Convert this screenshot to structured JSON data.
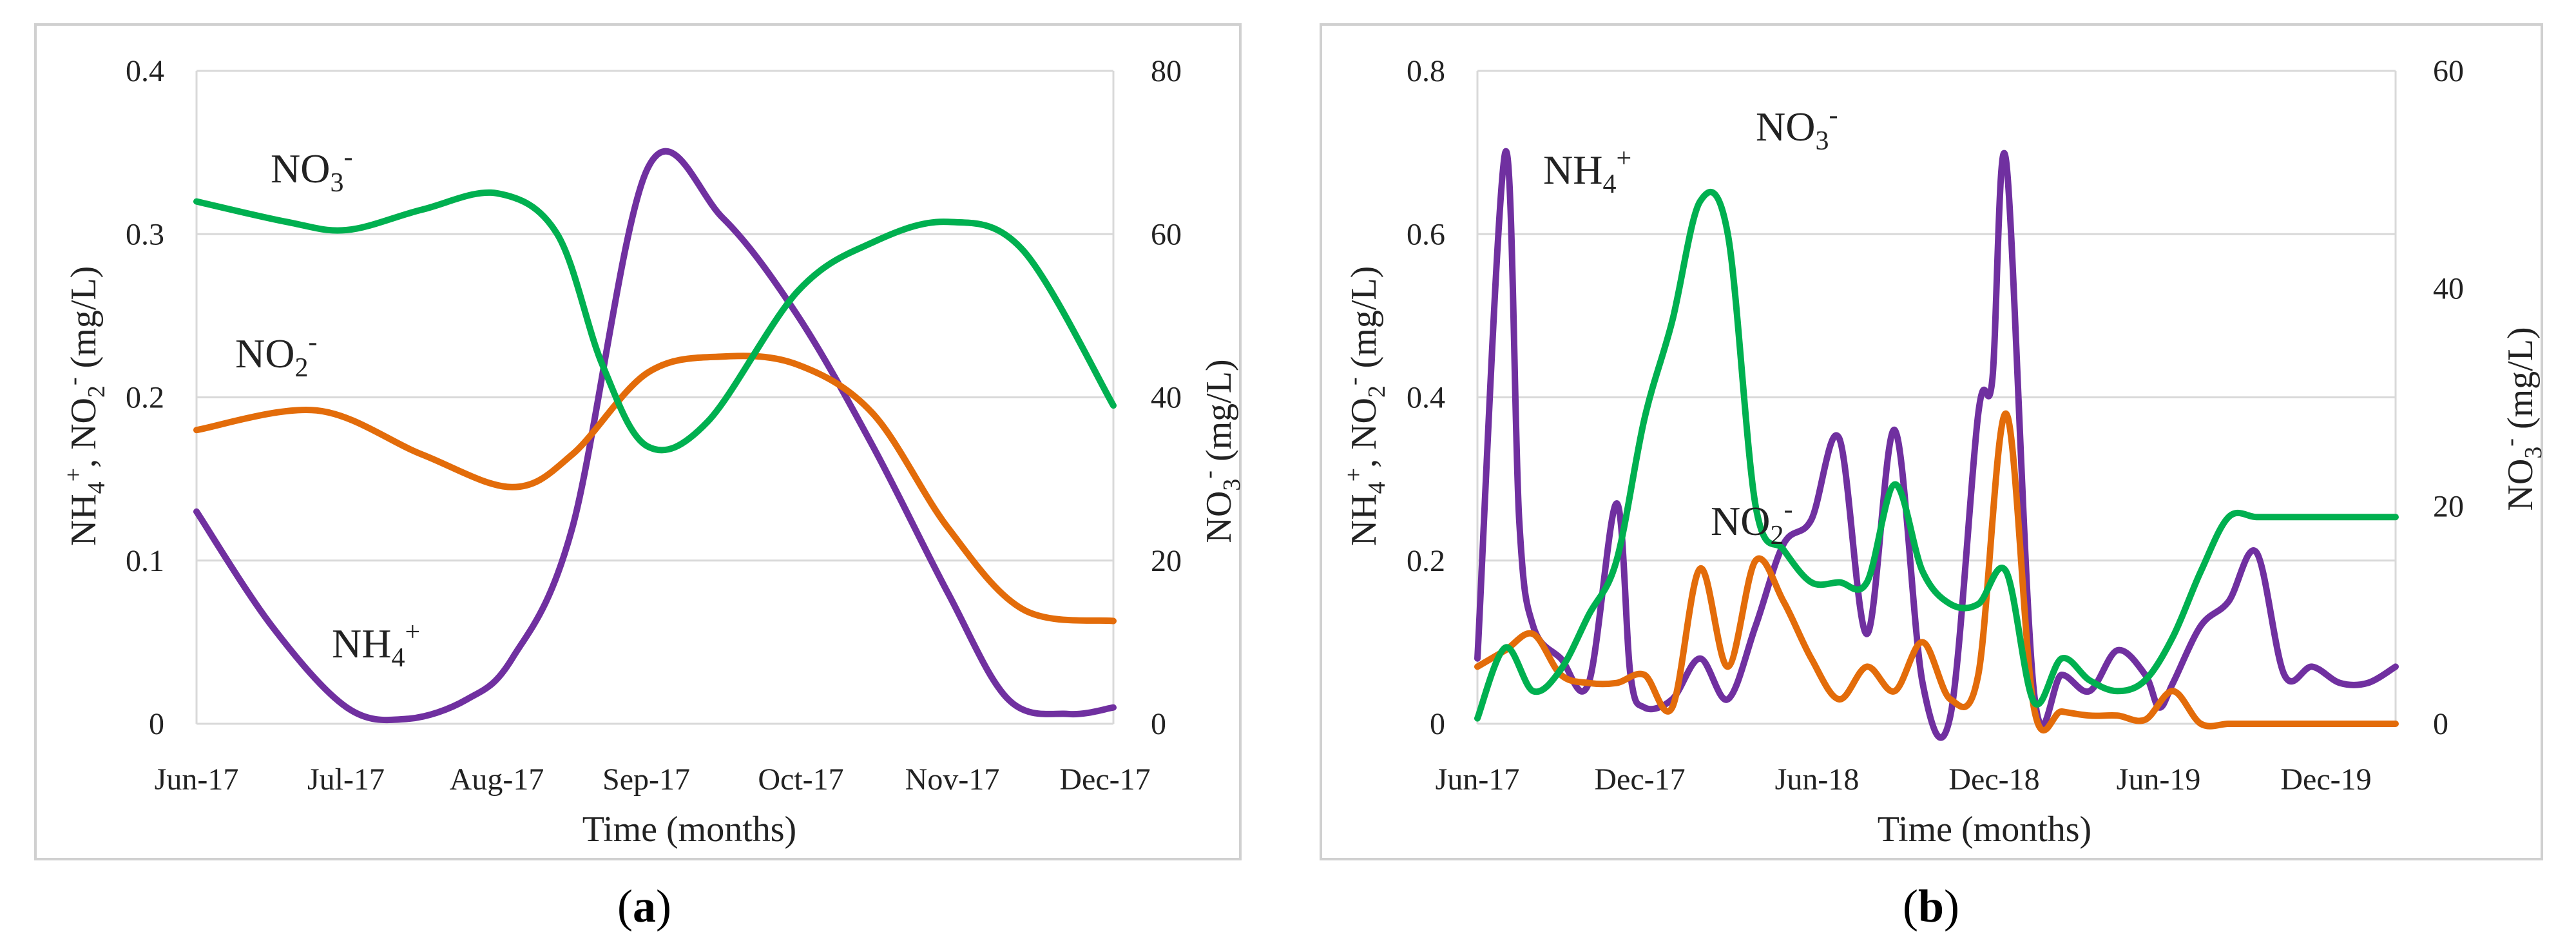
{
  "colors": {
    "nh4": "#7030a0",
    "no2": "#e36c0a",
    "no3": "#00b050"
  },
  "panels": [
    {
      "paren_open": "(",
      "letter": "a",
      "paren_close": ")"
    },
    {
      "paren_open": "(",
      "letter": "b",
      "paren_close": ")"
    }
  ],
  "chart_data": [
    {
      "type": "line",
      "xlabel": "Time (months)",
      "ylabel_left": {
        "n1": "NH",
        "n1_sub": "4",
        "n1_sup": "+",
        "sep": ", ",
        "n2": "NO",
        "n2_sub": "2",
        "n2_sup": "-",
        "unit": " (mg/L)"
      },
      "ylabel_right": {
        "n": "NO",
        "n_sub": "3",
        "n_sup": "-",
        "unit": " (mg/L)"
      },
      "x_ticks": [
        "Jun-17",
        "Jul-17",
        "Aug-17",
        "Sep-17",
        "Oct-17",
        "Nov-17",
        "Dec-17"
      ],
      "xlim": [
        0,
        6.1
      ],
      "ylim_left": [
        0,
        0.4
      ],
      "yticks_left": [
        "0",
        "0.1",
        "0.2",
        "0.3",
        "0.4"
      ],
      "ylim_right": [
        0,
        80
      ],
      "yticks_right": [
        "0",
        "20",
        "40",
        "60",
        "80"
      ],
      "grid": true,
      "series": [
        {
          "name": "NH4+",
          "axis": "left",
          "color_key": "nh4",
          "x": [
            0,
            0.5,
            1,
            1.4,
            1.8,
            2.1,
            2.5,
            3,
            3.5,
            4,
            4.5,
            5,
            5.4,
            5.8,
            6.1
          ],
          "y": [
            0.13,
            0.06,
            0.01,
            0.003,
            0.015,
            0.04,
            0.12,
            0.34,
            0.31,
            0.25,
            0.17,
            0.08,
            0.015,
            0.006,
            0.01
          ]
        },
        {
          "name": "NO2-",
          "axis": "left",
          "color_key": "no2",
          "x": [
            0,
            0.8,
            1.5,
            2.1,
            2.5,
            3,
            3.5,
            4,
            4.5,
            5,
            5.5,
            6.1
          ],
          "y": [
            0.18,
            0.192,
            0.165,
            0.145,
            0.165,
            0.215,
            0.225,
            0.22,
            0.19,
            0.12,
            0.07,
            0.063
          ]
        },
        {
          "name": "NO3-",
          "axis": "right",
          "color_key": "no3",
          "x": [
            0,
            0.6,
            1,
            1.5,
            2,
            2.4,
            2.7,
            3,
            3.4,
            4,
            4.5,
            5,
            5.5,
            6.1
          ],
          "y": [
            64,
            61.5,
            60.5,
            63,
            65,
            60,
            44,
            34,
            37,
            53,
            59,
            61.5,
            58,
            39
          ]
        }
      ],
      "annotations": [
        {
          "base": "NO",
          "sub": "3",
          "sup": "-",
          "series": "NO3-"
        },
        {
          "base": "NO",
          "sub": "2",
          "sup": "-",
          "series": "NO2-"
        },
        {
          "base": "NH",
          "sub": "4",
          "sup": "+",
          "series": "NH4+"
        }
      ]
    },
    {
      "type": "line",
      "xlabel": "Time (months)",
      "ylabel_left": {
        "n1": "NH",
        "n1_sub": "4",
        "n1_sup": "+",
        "sep": ", ",
        "n2": "NO",
        "n2_sub": "2",
        "n2_sup": "-",
        "unit": " (mg/L)"
      },
      "ylabel_right": {
        "n": "NO",
        "n_sub": "3",
        "n_sup": "-",
        "unit": " (mg/L)"
      },
      "x_ticks": [
        "Jun-17",
        "Dec-17",
        "Jun-18",
        "Dec-18",
        "Jun-19",
        "Dec-19"
      ],
      "xlim": [
        0,
        33
      ],
      "ylim_left": [
        0,
        0.8
      ],
      "yticks_left": [
        "0",
        "0.2",
        "0.4",
        "0.6",
        "0.8"
      ],
      "ylim_right": [
        0,
        60
      ],
      "yticks_right": [
        "0",
        "20",
        "40",
        "60"
      ],
      "grid": true,
      "series": [
        {
          "name": "NH4+",
          "axis": "left",
          "color_key": "nh4",
          "x": [
            0,
            1,
            1.5,
            2,
            3,
            4,
            5,
            5.5,
            6,
            7,
            8,
            9,
            10,
            11,
            12,
            13,
            14,
            15,
            16,
            17,
            18,
            18.5,
            19,
            20,
            21,
            22,
            23,
            24,
            24.5,
            25,
            26,
            27,
            28,
            29,
            30,
            31,
            32,
            33
          ],
          "y": [
            0.08,
            0.7,
            0.25,
            0.12,
            0.08,
            0.05,
            0.27,
            0.06,
            0.02,
            0.03,
            0.08,
            0.03,
            0.12,
            0.22,
            0.25,
            0.35,
            0.11,
            0.36,
            0.05,
            0.01,
            0.38,
            0.42,
            0.69,
            0.04,
            0.06,
            0.04,
            0.09,
            0.06,
            0.02,
            0.05,
            0.12,
            0.15,
            0.21,
            0.06,
            0.07,
            0.05,
            0.05,
            0.07
          ]
        },
        {
          "name": "NO2-",
          "axis": "left",
          "color_key": "no2",
          "x": [
            0,
            1,
            2,
            3,
            4,
            5,
            6,
            7,
            8,
            9,
            10,
            11,
            12,
            13,
            14,
            15,
            16,
            17,
            18,
            19,
            20,
            21,
            22,
            23,
            24,
            25,
            26,
            27,
            28,
            29,
            30,
            31,
            32,
            33
          ],
          "y": [
            0.07,
            0.09,
            0.11,
            0.06,
            0.05,
            0.05,
            0.06,
            0.02,
            0.19,
            0.07,
            0.2,
            0.15,
            0.08,
            0.03,
            0.07,
            0.04,
            0.1,
            0.03,
            0.06,
            0.38,
            0.02,
            0.015,
            0.01,
            0.01,
            0.005,
            0.04,
            0.0,
            0.0,
            0.0,
            0.0,
            0.0,
            0.0,
            0.0,
            0.0
          ]
        },
        {
          "name": "NO3-",
          "axis": "right",
          "color_key": "no3",
          "x": [
            0,
            1,
            2,
            3,
            4,
            5,
            6,
            7,
            8,
            9,
            10,
            11,
            12,
            13,
            14,
            15,
            16,
            17,
            18,
            19,
            20,
            21,
            22,
            23,
            24,
            25,
            26,
            27,
            28,
            29,
            30,
            31,
            32,
            33
          ],
          "y": [
            0.5,
            7,
            3,
            5,
            10,
            15,
            28,
            37,
            48,
            45,
            20,
            16,
            13,
            13,
            13,
            22,
            14,
            11,
            11,
            14,
            2,
            6,
            4,
            3,
            4,
            8,
            14,
            19,
            19,
            19,
            19,
            19,
            19,
            19
          ]
        }
      ],
      "annotations": [
        {
          "base": "NH",
          "sub": "4",
          "sup": "+",
          "series": "NH4+"
        },
        {
          "base": "NO",
          "sub": "3",
          "sup": "-",
          "series": "NO3-"
        },
        {
          "base": "NO",
          "sub": "2",
          "sup": "-",
          "series": "NO2-"
        }
      ]
    }
  ]
}
